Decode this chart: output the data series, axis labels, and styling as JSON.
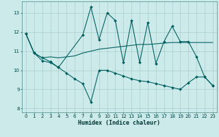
{
  "xlabel": "Humidex (Indice chaleur)",
  "background_color": "#cceaea",
  "grid_color": "#aacccc",
  "line_color": "#006060",
  "xlim": [
    -0.5,
    23.5
  ],
  "ylim": [
    7.8,
    13.6
  ],
  "yticks": [
    8,
    9,
    10,
    11,
    12,
    13
  ],
  "xticks": [
    0,
    1,
    2,
    3,
    4,
    5,
    6,
    7,
    8,
    9,
    10,
    11,
    12,
    13,
    14,
    15,
    16,
    17,
    18,
    19,
    20,
    21,
    22,
    23
  ],
  "line1_x": [
    0,
    1,
    2,
    3,
    4,
    7,
    8,
    9,
    10,
    11,
    12,
    13,
    14,
    15,
    16,
    17,
    18,
    19,
    20,
    21,
    22,
    23
  ],
  "line1_y": [
    11.9,
    10.9,
    10.65,
    10.45,
    10.15,
    11.85,
    13.3,
    11.6,
    13.0,
    12.6,
    10.4,
    12.6,
    10.4,
    12.5,
    10.35,
    11.5,
    12.3,
    11.5,
    11.5,
    10.7,
    9.65,
    9.2
  ],
  "line2_x": [
    0,
    1,
    2,
    3,
    4,
    5,
    6,
    7,
    8,
    9,
    10,
    11,
    12,
    13,
    14,
    15,
    16,
    17,
    18,
    19,
    20,
    21,
    22,
    23
  ],
  "line2_y": [
    11.9,
    10.9,
    10.65,
    10.7,
    10.65,
    10.7,
    10.75,
    10.9,
    11.0,
    11.1,
    11.15,
    11.2,
    11.25,
    11.3,
    11.35,
    11.35,
    11.38,
    11.42,
    11.45,
    11.45,
    11.45,
    11.45,
    11.45,
    11.45
  ],
  "line3_x": [
    0,
    1,
    2,
    3,
    4,
    5,
    6,
    7,
    8,
    9,
    10,
    11,
    12,
    13,
    14,
    15,
    16,
    17,
    18,
    19,
    20,
    21,
    22,
    23
  ],
  "line3_y": [
    11.9,
    10.9,
    10.5,
    10.4,
    10.15,
    9.85,
    9.55,
    9.3,
    8.35,
    10.0,
    10.0,
    9.85,
    9.7,
    9.55,
    9.45,
    9.4,
    9.3,
    9.2,
    9.1,
    9.0,
    9.35,
    9.65,
    9.65,
    9.2
  ]
}
